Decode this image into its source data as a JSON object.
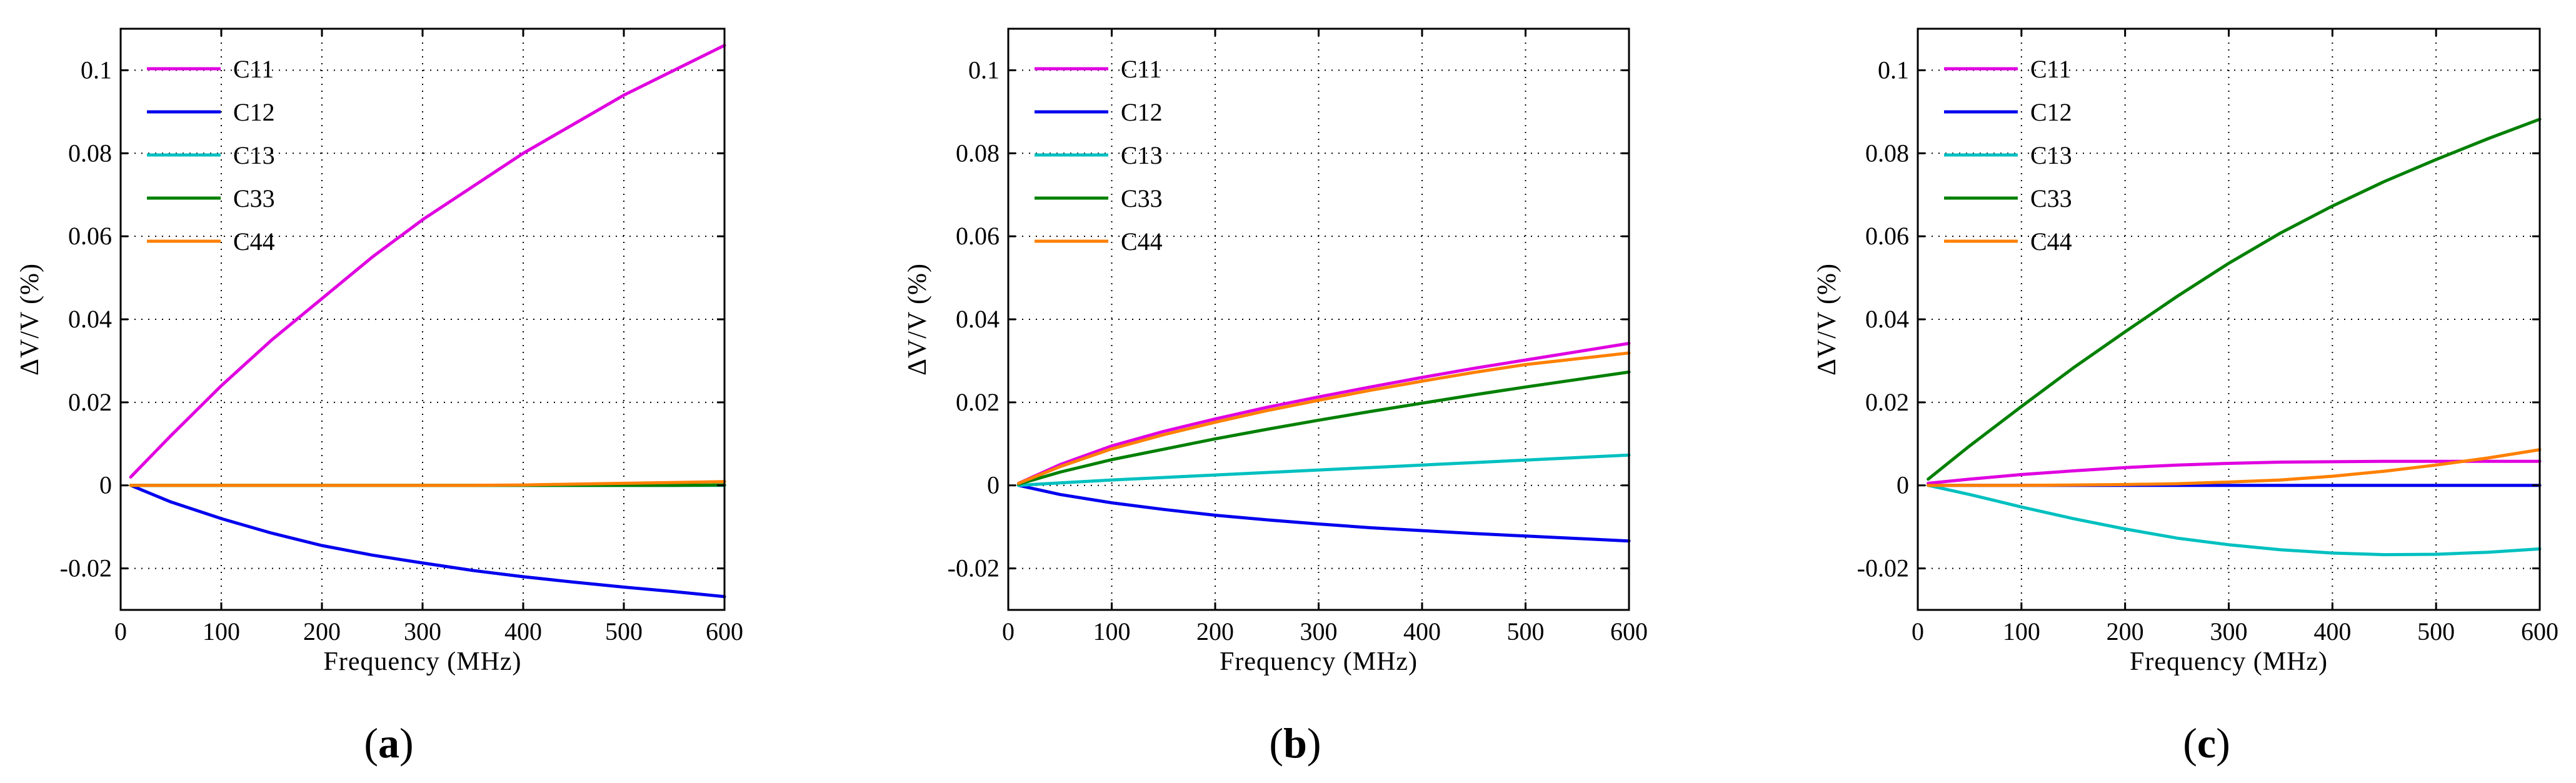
{
  "figure": {
    "panels": [
      {
        "label_open": "(",
        "label_letter": "a",
        "label_close": ")"
      },
      {
        "label_open": "(",
        "label_letter": "b",
        "label_close": ")"
      },
      {
        "label_open": "(",
        "label_letter": "c",
        "label_close": ")"
      }
    ]
  },
  "colors": {
    "C11": "#e000e0",
    "C12": "#0000ee",
    "C13": "#00c0c0",
    "C33": "#008000",
    "C44": "#ff8000"
  },
  "chart_data": [
    {
      "type": "line",
      "panel": "a",
      "title": "",
      "xlabel": "Frequency  (MHz)",
      "ylabel": "ΔV/V  (%)",
      "xlim": [
        0,
        600
      ],
      "ylim": [
        -0.03,
        0.11
      ],
      "xticks": [
        0,
        100,
        200,
        300,
        400,
        500,
        600
      ],
      "xticklabels": [
        "0",
        "100",
        "200",
        "300",
        "400",
        "500",
        "600"
      ],
      "yticks": [
        -0.02,
        0,
        0.02,
        0.04,
        0.06,
        0.08,
        0.1
      ],
      "yticklabels": [
        "-0.02",
        "0",
        "0.02",
        "0.04",
        "0.06",
        "0.08",
        "0.1"
      ],
      "grid": true,
      "legend": "top-left",
      "x": [
        10,
        50,
        100,
        150,
        200,
        250,
        300,
        350,
        400,
        450,
        500,
        550,
        600
      ],
      "series": [
        {
          "name": "C11",
          "values": [
            0.002,
            0.012,
            0.024,
            0.035,
            0.045,
            0.055,
            0.064,
            0.072,
            0.08,
            0.087,
            0.094,
            0.1,
            0.106
          ]
        },
        {
          "name": "C12",
          "values": [
            0.0,
            -0.004,
            -0.008,
            -0.0115,
            -0.0145,
            -0.0168,
            -0.0187,
            -0.0205,
            -0.022,
            -0.0233,
            -0.0245,
            -0.0256,
            -0.0268
          ]
        },
        {
          "name": "C13",
          "values": [
            0,
            0,
            0,
            0,
            0,
            0,
            0,
            0,
            0,
            0,
            0,
            0,
            0
          ]
        },
        {
          "name": "C33",
          "values": [
            0,
            0,
            0,
            0,
            0,
            0,
            0,
            0,
            0,
            0,
            0,
            0,
            0.0001
          ]
        },
        {
          "name": "C44",
          "values": [
            0,
            0,
            0,
            0,
            0,
            0,
            0,
            0,
            0.0001,
            0.0003,
            0.0005,
            0.0007,
            0.0009
          ]
        }
      ]
    },
    {
      "type": "line",
      "panel": "b",
      "title": "",
      "xlabel": "Frequency  (MHz)",
      "ylabel": "ΔV/V  (%)",
      "xlim": [
        0,
        600
      ],
      "ylim": [
        -0.03,
        0.11
      ],
      "xticks": [
        0,
        100,
        200,
        300,
        400,
        500,
        600
      ],
      "xticklabels": [
        "0",
        "100",
        "200",
        "300",
        "400",
        "500",
        "600"
      ],
      "yticks": [
        -0.02,
        0,
        0.02,
        0.04,
        0.06,
        0.08,
        0.1
      ],
      "yticklabels": [
        "-0.02",
        "0",
        "0.02",
        "0.04",
        "0.06",
        "0.08",
        "0.1"
      ],
      "grid": true,
      "legend": "top-left",
      "x": [
        10,
        50,
        100,
        150,
        200,
        250,
        300,
        350,
        400,
        450,
        500,
        550,
        600
      ],
      "series": [
        {
          "name": "C11",
          "values": [
            0.0005,
            0.005,
            0.0095,
            0.013,
            0.016,
            0.0188,
            0.0213,
            0.0237,
            0.026,
            0.0282,
            0.0302,
            0.0322,
            0.0342
          ]
        },
        {
          "name": "C12",
          "values": [
            0.0,
            -0.0022,
            -0.0042,
            -0.0058,
            -0.0072,
            -0.0083,
            -0.0093,
            -0.0102,
            -0.0109,
            -0.0116,
            -0.0122,
            -0.0128,
            -0.0134
          ]
        },
        {
          "name": "C13",
          "values": [
            0.0,
            0.0006,
            0.0013,
            0.0019,
            0.0025,
            0.0031,
            0.0037,
            0.0043,
            0.0049,
            0.0055,
            0.0061,
            0.0067,
            0.0073
          ]
        },
        {
          "name": "C33",
          "values": [
            0.0003,
            0.0032,
            0.0062,
            0.0087,
            0.0112,
            0.0135,
            0.0157,
            0.0178,
            0.0198,
            0.0218,
            0.0237,
            0.0255,
            0.0273
          ]
        },
        {
          "name": "C44",
          "values": [
            0.0005,
            0.0045,
            0.0088,
            0.0122,
            0.0152,
            0.018,
            0.0205,
            0.0229,
            0.0251,
            0.0272,
            0.0291,
            0.0305,
            0.0319
          ]
        }
      ]
    },
    {
      "type": "line",
      "panel": "c",
      "title": "",
      "xlabel": "Frequency  (MHz)",
      "ylabel": "ΔV/V  (%)",
      "xlim": [
        0,
        600
      ],
      "ylim": [
        -0.03,
        0.11
      ],
      "xticks": [
        0,
        100,
        200,
        300,
        400,
        500,
        600
      ],
      "xticklabels": [
        "0",
        "100",
        "200",
        "300",
        "400",
        "500",
        "600"
      ],
      "yticks": [
        -0.02,
        0,
        0.02,
        0.04,
        0.06,
        0.08,
        0.1
      ],
      "yticklabels": [
        "-0.02",
        "0",
        "0.02",
        "0.04",
        "0.06",
        "0.08",
        "0.1"
      ],
      "grid": true,
      "legend": "top-left",
      "x": [
        10,
        50,
        100,
        150,
        200,
        250,
        300,
        350,
        400,
        450,
        500,
        550,
        600
      ],
      "series": [
        {
          "name": "C11",
          "values": [
            0.0005,
            0.0015,
            0.0026,
            0.0035,
            0.0043,
            0.0049,
            0.0053,
            0.0056,
            0.0057,
            0.0058,
            0.0058,
            0.0058,
            0.0058
          ]
        },
        {
          "name": "C12",
          "values": [
            0,
            0,
            0,
            0,
            0,
            0,
            0,
            0,
            0,
            0,
            0,
            0,
            0
          ]
        },
        {
          "name": "C13",
          "values": [
            0.0,
            -0.0022,
            -0.0052,
            -0.008,
            -0.0105,
            -0.0127,
            -0.0143,
            -0.0155,
            -0.0163,
            -0.0167,
            -0.0166,
            -0.0161,
            -0.0153
          ]
        },
        {
          "name": "C33",
          "values": [
            0.0015,
            0.0095,
            0.019,
            0.0283,
            0.037,
            0.0455,
            0.0535,
            0.0608,
            0.0673,
            0.0732,
            0.0785,
            0.0835,
            0.0882
          ]
        },
        {
          "name": "C44",
          "values": [
            0,
            0,
            0,
            0.0001,
            0.0002,
            0.0004,
            0.0008,
            0.0013,
            0.0022,
            0.0034,
            0.0049,
            0.0066,
            0.0086
          ]
        }
      ]
    }
  ]
}
